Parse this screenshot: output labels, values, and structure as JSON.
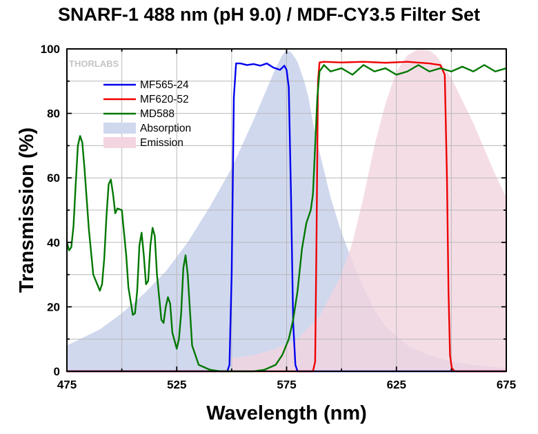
{
  "chart_data": {
    "type": "line",
    "title": "SNARF-1 488 nm (pH 9.0) / MDF-CY3.5 Filter Set",
    "xlabel": "Wavelength (nm)",
    "ylabel": "Transmission (%)",
    "xlim": [
      475,
      675
    ],
    "ylim": [
      0,
      100
    ],
    "xticks": [
      475,
      525,
      575,
      625,
      675
    ],
    "yticks": [
      0,
      20,
      40,
      60,
      80,
      100
    ],
    "grid": true,
    "legend_position": "top-left",
    "watermark": "THORLABS",
    "series": [
      {
        "name": "MF565-24",
        "kind": "line",
        "color": "#0000ee",
        "x": [
          475,
          548,
          549,
          550,
          551,
          552,
          554,
          557,
          560,
          563,
          566,
          569,
          572,
          574,
          575,
          576,
          577,
          578,
          579,
          580,
          675
        ],
        "y": [
          0,
          0,
          2,
          30,
          85,
          95.5,
          95.5,
          95,
          95.3,
          94.8,
          95.5,
          94.2,
          93.5,
          94.8,
          93.5,
          88,
          55,
          15,
          2,
          0,
          0
        ]
      },
      {
        "name": "MF620-52",
        "kind": "line",
        "color": "#ee0000",
        "x": [
          475,
          587,
          588,
          588.6,
          589.3,
          590,
          592,
          600,
          610,
          620,
          630,
          640,
          645,
          647,
          648,
          648.7,
          649.4,
          650.2,
          651.5,
          675
        ],
        "y": [
          0,
          0,
          3,
          40,
          90,
          95.8,
          96,
          95.8,
          96,
          95.7,
          96,
          95.5,
          95,
          92,
          60,
          25,
          5,
          1,
          0,
          0
        ]
      },
      {
        "name": "MD588",
        "kind": "line",
        "color": "#007700",
        "x": [
          475,
          476,
          477,
          478,
          479,
          480,
          481,
          482,
          483,
          485,
          487,
          490,
          491,
          492,
          493,
          494,
          495,
          496,
          497,
          498,
          500,
          502,
          503,
          505,
          506,
          507,
          508,
          509,
          510,
          511,
          512,
          513,
          514,
          515,
          516,
          518,
          519,
          520,
          521,
          522,
          523,
          525,
          526,
          527,
          528,
          529,
          530,
          532,
          535,
          540,
          545,
          550,
          555,
          560,
          565,
          570,
          573,
          576,
          578,
          580,
          582,
          584,
          586,
          587,
          588,
          589,
          590,
          592,
          595,
          600,
          605,
          610,
          615,
          620,
          625,
          630,
          635,
          640,
          645,
          650,
          655,
          660,
          665,
          670,
          675
        ],
        "y": [
          40,
          37.5,
          38.5,
          45,
          58,
          70,
          73,
          71,
          63,
          44,
          30,
          25,
          27,
          35,
          48,
          58,
          59.5,
          55,
          49,
          50.5,
          50,
          36,
          26,
          17.5,
          18,
          25,
          39,
          43,
          36,
          27,
          28,
          39,
          44.5,
          42,
          30,
          16,
          15,
          20,
          23,
          21,
          12,
          7,
          10,
          18,
          32,
          36,
          30,
          8,
          2,
          0.5,
          0,
          0,
          0,
          0,
          0.5,
          2,
          5,
          10,
          16,
          25,
          38,
          46,
          50,
          55,
          70,
          85,
          93,
          95,
          93,
          94,
          92,
          95,
          93,
          94,
          92,
          93,
          95,
          93,
          94,
          93,
          94.5,
          93,
          95,
          93,
          94
        ]
      },
      {
        "name": "Absorption",
        "kind": "area",
        "color": "#d0d8ee",
        "x": [
          475,
          490,
          500,
          510,
          520,
          530,
          540,
          550,
          560,
          565,
          570,
          573,
          575,
          577,
          580,
          583,
          585,
          587,
          590,
          595,
          600,
          605,
          610,
          615,
          620,
          630,
          640,
          650,
          660,
          675
        ],
        "y": [
          8,
          13,
          18,
          24,
          31,
          40,
          51,
          63,
          78,
          86,
          94,
          98,
          99.5,
          99,
          96,
          90,
          85,
          77,
          68,
          54,
          43,
          34,
          26,
          19,
          14,
          8,
          5,
          3,
          2,
          1
        ]
      },
      {
        "name": "Emission",
        "kind": "area",
        "color": "#f2d5e0",
        "x": [
          550,
          560,
          570,
          580,
          590,
          600,
          605,
          610,
          615,
          620,
          625,
          630,
          635,
          640,
          643,
          645,
          650,
          655,
          660,
          665,
          670,
          675
        ],
        "y": [
          4,
          5,
          7,
          10,
          17,
          30,
          40,
          54,
          70,
          83,
          93,
          98,
          100,
          99.5,
          98,
          96,
          91,
          84,
          77,
          69,
          61,
          54
        ]
      }
    ]
  }
}
